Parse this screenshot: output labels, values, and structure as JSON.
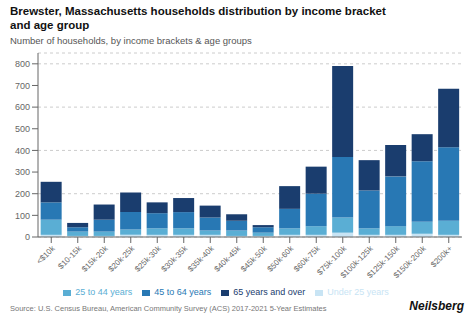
{
  "chart_data": {
    "type": "bar",
    "title": "Brewster, Massachusetts households distribution by income bracket\nand age group",
    "subtitle": "Number of households, by income brackets & age groups",
    "annotations": [
      "Source: U.S. Census Bureau, American Community Survey (ACS) 2017-2021 5-Year Estimates",
      "Neilsberg"
    ],
    "categories": [
      "<$10k",
      "$10-15k",
      "$15k-20k",
      "$20k-25k",
      "$25k-30k",
      "$30k-35k",
      "$35k-40k",
      "$40k-45k",
      "$45k-50k",
      "$50k-60k",
      "$60k-75k",
      "$75k-100k",
      "$100k-125k",
      "$125k-150k",
      "$150k-200k",
      "$200k+"
    ],
    "series": [
      {
        "name": "Under 25 years",
        "color": "#c8e4f4",
        "values": [
          10,
          5,
          5,
          10,
          10,
          10,
          10,
          5,
          5,
          10,
          10,
          20,
          10,
          10,
          15,
          10
        ]
      },
      {
        "name": "25 to 44 years",
        "color": "#5aaed4",
        "values": [
          70,
          20,
          20,
          25,
          30,
          30,
          20,
          25,
          15,
          30,
          40,
          70,
          30,
          40,
          55,
          65
        ]
      },
      {
        "name": "45 to 64 years",
        "color": "#2878b4",
        "values": [
          80,
          20,
          55,
          80,
          70,
          75,
          60,
          45,
          25,
          90,
          150,
          280,
          175,
          230,
          280,
          340
        ]
      },
      {
        "name": "65 years and over",
        "color": "#1a3d6e",
        "values": [
          95,
          20,
          70,
          90,
          50,
          65,
          55,
          30,
          10,
          105,
          125,
          420,
          140,
          145,
          125,
          270
        ]
      }
    ],
    "ylim": [
      0,
      850
    ],
    "yticks": [
      0,
      100,
      200,
      300,
      400,
      500,
      600,
      700,
      800
    ],
    "stacked": true,
    "grid": true,
    "legend": "bottom"
  }
}
